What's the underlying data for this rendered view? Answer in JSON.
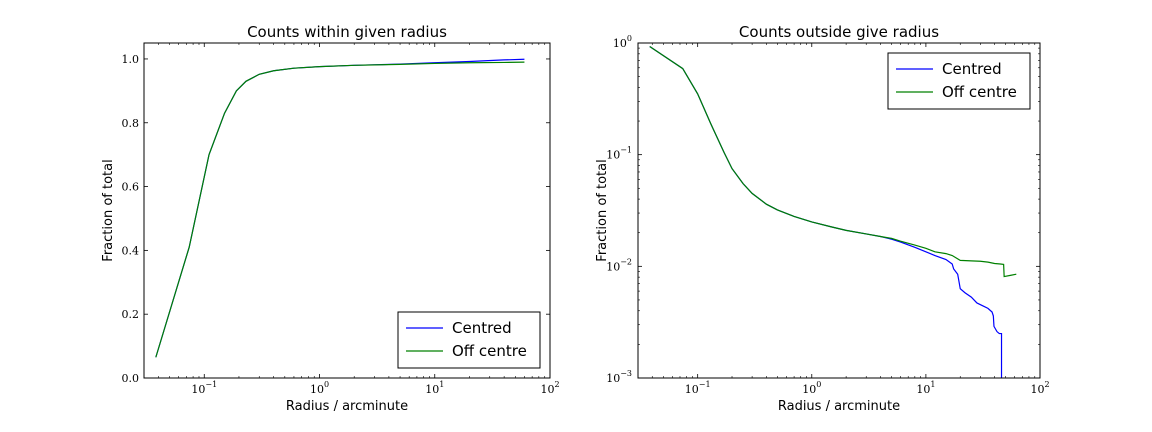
{
  "chart_data": [
    {
      "type": "line",
      "title": "Counts within given radius",
      "xlabel": "Radius / arcminute",
      "ylabel": "Fraction of total",
      "xscale": "log",
      "xlim": [
        0.03,
        100
      ],
      "ylim": [
        0.0,
        1.05
      ],
      "xticks": [
        {
          "value": 0.1,
          "base": "10",
          "exp": "−1"
        },
        {
          "value": 1,
          "base": "10",
          "exp": "0"
        },
        {
          "value": 10,
          "base": "10",
          "exp": "1"
        },
        {
          "value": 100,
          "base": "10",
          "exp": "2"
        }
      ],
      "yticks": [
        {
          "value": 0.0,
          "label": "0.0"
        },
        {
          "value": 0.2,
          "label": "0.2"
        },
        {
          "value": 0.4,
          "label": "0.4"
        },
        {
          "value": 0.6,
          "label": "0.6"
        },
        {
          "value": 0.8,
          "label": "0.8"
        },
        {
          "value": 1.0,
          "label": "1.0"
        }
      ],
      "grid": false,
      "legend_position": "lower-right",
      "series": [
        {
          "name": "Centred",
          "color": "#0000ff",
          "x": [
            0.038,
            0.074,
            0.11,
            0.15,
            0.19,
            0.23,
            0.3,
            0.4,
            0.6,
            1.0,
            2.0,
            5.0,
            10.0,
            20.0,
            40.0,
            60.0
          ],
          "y": [
            0.065,
            0.41,
            0.7,
            0.83,
            0.9,
            0.93,
            0.952,
            0.963,
            0.971,
            0.976,
            0.98,
            0.984,
            0.988,
            0.992,
            0.997,
            0.999
          ]
        },
        {
          "name": "Off centre",
          "color": "#008000",
          "x": [
            0.038,
            0.074,
            0.11,
            0.15,
            0.19,
            0.23,
            0.3,
            0.4,
            0.6,
            1.0,
            2.0,
            5.0,
            10.0,
            20.0,
            40.0,
            60.0
          ],
          "y": [
            0.065,
            0.41,
            0.7,
            0.83,
            0.9,
            0.93,
            0.952,
            0.963,
            0.971,
            0.976,
            0.98,
            0.983,
            0.986,
            0.988,
            0.989,
            0.99
          ]
        }
      ]
    },
    {
      "type": "line",
      "title": "Counts outside give radius",
      "xlabel": "Radius / arcminute",
      "ylabel": "Fraction of total",
      "xscale": "log",
      "yscale": "log",
      "xlim": [
        0.03,
        100
      ],
      "ylim": [
        0.001,
        1
      ],
      "xticks": [
        {
          "value": 0.1,
          "base": "10",
          "exp": "−1"
        },
        {
          "value": 1,
          "base": "10",
          "exp": "0"
        },
        {
          "value": 10,
          "base": "10",
          "exp": "1"
        },
        {
          "value": 100,
          "base": "10",
          "exp": "2"
        }
      ],
      "yticks": [
        {
          "value": 0.001,
          "base": "10",
          "exp": "−3"
        },
        {
          "value": 0.01,
          "base": "10",
          "exp": "−2"
        },
        {
          "value": 0.1,
          "base": "10",
          "exp": "−1"
        },
        {
          "value": 1,
          "base": "10",
          "exp": "0"
        }
      ],
      "grid": false,
      "legend_position": "upper-right",
      "series": [
        {
          "name": "Centred",
          "color": "#0000ff",
          "x": [
            0.038,
            0.074,
            0.1,
            0.13,
            0.17,
            0.2,
            0.25,
            0.3,
            0.4,
            0.5,
            0.7,
            1.0,
            1.5,
            2.0,
            3.0,
            4.0,
            5.0,
            6.0,
            8.0,
            10.0,
            12.0,
            15.0,
            17.0,
            17.5,
            19.0,
            20.0,
            22.0,
            25.0,
            28.0,
            32.0,
            35.0,
            38.0,
            39.0,
            39.5,
            42.0,
            44.0,
            45.0,
            46.0,
            46.0
          ],
          "y": [
            0.93,
            0.59,
            0.35,
            0.19,
            0.105,
            0.075,
            0.055,
            0.045,
            0.036,
            0.032,
            0.028,
            0.025,
            0.0225,
            0.021,
            0.0195,
            0.0185,
            0.0175,
            0.0165,
            0.0148,
            0.0135,
            0.0125,
            0.0115,
            0.0105,
            0.0095,
            0.0085,
            0.0063,
            0.0058,
            0.0053,
            0.0047,
            0.0044,
            0.0042,
            0.0039,
            0.0036,
            0.0029,
            0.0026,
            0.0025,
            0.0025,
            0.0025,
            0.001
          ]
        },
        {
          "name": "Off centre",
          "color": "#008000",
          "x": [
            0.038,
            0.074,
            0.1,
            0.13,
            0.17,
            0.2,
            0.25,
            0.3,
            0.4,
            0.5,
            0.7,
            1.0,
            1.5,
            2.0,
            3.0,
            4.0,
            5.0,
            6.0,
            8.0,
            10.0,
            12.0,
            15.0,
            17.0,
            20.0,
            25.0,
            30.0,
            35.0,
            40.0,
            45.0,
            48.0,
            48.5,
            55.0,
            62.0
          ],
          "y": [
            0.93,
            0.59,
            0.35,
            0.19,
            0.105,
            0.075,
            0.055,
            0.045,
            0.036,
            0.032,
            0.028,
            0.025,
            0.0225,
            0.021,
            0.0195,
            0.0185,
            0.0178,
            0.0168,
            0.0155,
            0.0145,
            0.0135,
            0.013,
            0.0125,
            0.0113,
            0.0112,
            0.0111,
            0.0109,
            0.0106,
            0.0105,
            0.0104,
            0.0081,
            0.0083,
            0.0085
          ]
        }
      ]
    }
  ]
}
